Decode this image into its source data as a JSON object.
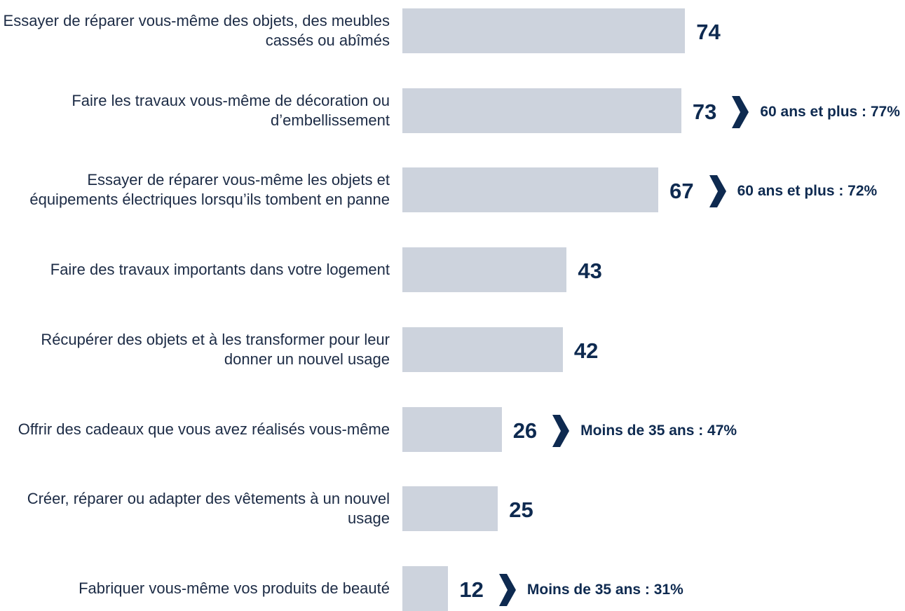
{
  "chart_data": {
    "type": "bar",
    "orientation": "horizontal",
    "categories": [
      "Essayer de réparer vous-même des objets, des meubles cassés ou abîmés",
      "Faire les travaux vous-même de décoration ou d’embellissement",
      "Essayer de réparer vous-même les objets et équipements électriques lorsqu’ils tombent en panne",
      "Faire des travaux importants dans votre logement",
      "Récupérer des objets et à les transformer pour leur donner un nouvel usage",
      "Offrir des cadeaux que vous avez réalisés vous-même",
      "Créer, réparer ou adapter des vêtements à un nouvel usage",
      "Fabriquer vous-même vos produits de beauté"
    ],
    "values": [
      74,
      73,
      67,
      43,
      42,
      26,
      25,
      12
    ],
    "annotations": [
      null,
      "60 ans et plus : 77%",
      "60 ans et plus : 72%",
      null,
      null,
      "Moins de 35 ans : 47%",
      null,
      "Moins de 35 ans : 31%"
    ],
    "color": "#cdd3dd"
  }
}
